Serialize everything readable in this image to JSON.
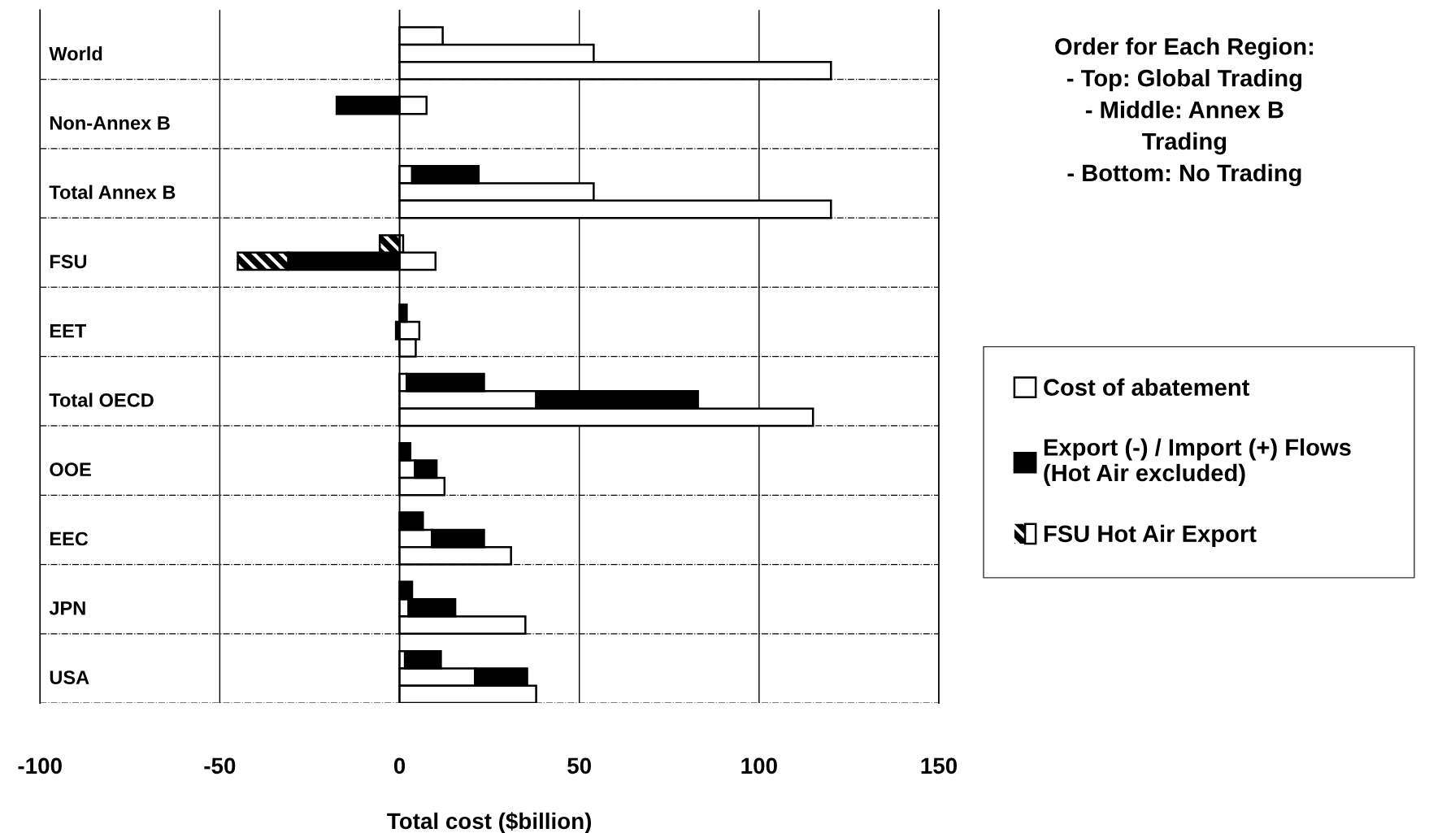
{
  "chart_data": {
    "type": "bar",
    "orientation": "horizontal",
    "stacked": true,
    "categories": [
      null,
      null,
      "World",
      null,
      null,
      null,
      "Non-Annex B",
      null,
      null,
      null,
      "Total Annex B",
      null,
      null,
      null,
      "FSU",
      null,
      null,
      null,
      "EET",
      null,
      null,
      null,
      "Total OECD",
      null,
      null,
      null,
      "OOE",
      null,
      null,
      null,
      "EEC",
      null,
      null,
      null,
      "JPN",
      null,
      null,
      null,
      "USA",
      null
    ],
    "series": [
      {
        "name": "Cost of abatement",
        "color": "#ffffff",
        "values": [
          null,
          12,
          54,
          120,
          null,
          7.5,
          null,
          null,
          null,
          3.5,
          54,
          120,
          null,
          1,
          10,
          null,
          null,
          null,
          5.5,
          4.5,
          null,
          2,
          38,
          115,
          null,
          null,
          4.3,
          12.5,
          null,
          null,
          9,
          31,
          null,
          null,
          2.5,
          35,
          null,
          1.5,
          21,
          38
        ]
      },
      {
        "name": "Export (-) / Import (+) Flows\n(Hot Air excluded)",
        "color": "#000000",
        "values": [
          null,
          null,
          null,
          null,
          null,
          -17.5,
          null,
          null,
          null,
          18.5,
          null,
          null,
          null,
          null,
          -31,
          null,
          null,
          2,
          -1,
          null,
          null,
          21.5,
          45,
          null,
          null,
          3,
          6,
          null,
          null,
          6.5,
          14.5,
          null,
          null,
          3.5,
          13,
          null,
          null,
          10,
          14.5,
          null
        ]
      },
      {
        "name": "FSU Hot Air Export",
        "color": "#000000",
        "values": [
          null,
          null,
          null,
          null,
          null,
          null,
          null,
          null,
          null,
          null,
          null,
          null,
          null,
          -5.5,
          -14,
          null,
          null,
          null,
          null,
          null,
          null,
          null,
          null,
          null,
          null,
          null,
          null,
          null,
          null,
          null,
          null,
          null,
          null,
          null,
          null,
          null,
          null,
          null,
          null,
          null
        ]
      }
    ],
    "xlim": [
      -100,
      150
    ],
    "xticks": [
      -100,
      -50,
      0,
      50,
      100,
      150
    ],
    "xlabel": "Total cost ($billion)",
    "grid": true,
    "legend": "right",
    "annotations": [
      "Order for Each Region:",
      "- Top: Global Trading",
      "- Middle: Annex B\nTrading",
      "- Bottom: No Trading"
    ]
  }
}
